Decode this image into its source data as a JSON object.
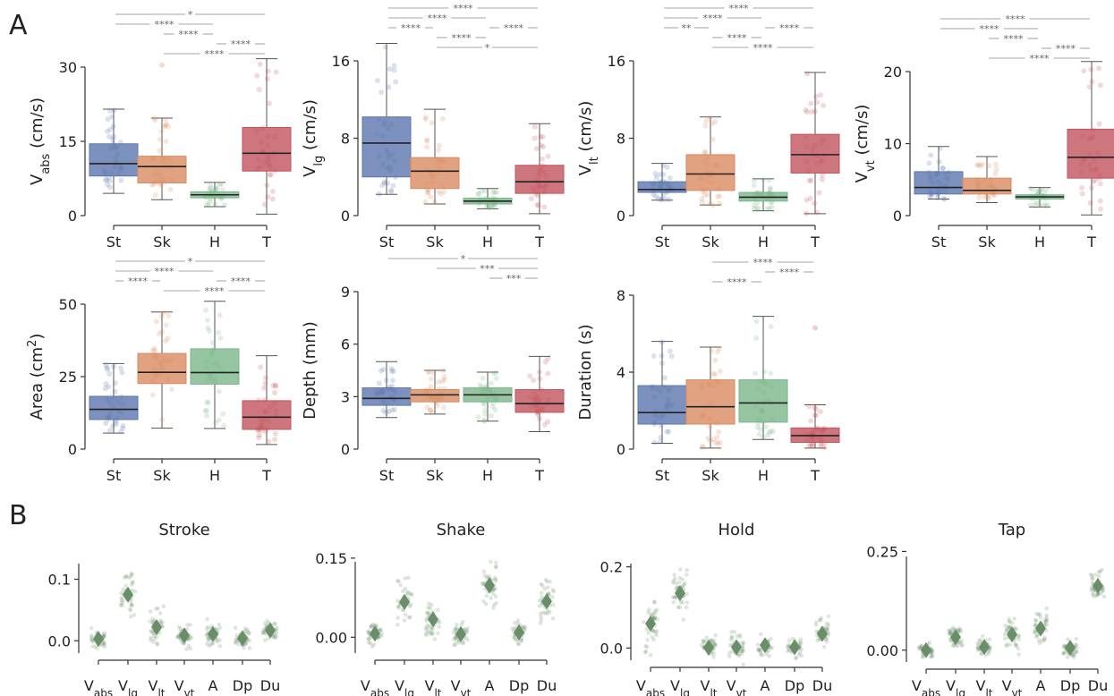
{
  "panel_letters": [
    "A",
    "B"
  ],
  "colors": {
    "St": "#5b76ae",
    "Sk": "#d98b61",
    "H": "#7ab68a",
    "T": "#c2545d",
    "marker": "#6a8f68",
    "axis": "#333333",
    "bracket": "#888888"
  },
  "chart_data": [
    {
      "type": "box",
      "panel": "A",
      "ylabel_main": "V",
      "ylabel_sub": "abs",
      "ylabel_unit": " (cm/s)",
      "categories": [
        "St",
        "Sk",
        "H",
        "T"
      ],
      "yticks": [
        0,
        15,
        30
      ],
      "ylim": [
        0,
        30
      ],
      "boxes": [
        {
          "whislo": 4.5,
          "q1": 8,
          "med": 10.5,
          "q3": 14.5,
          "whishi": 21.5
        },
        {
          "whislo": 3.2,
          "q1": 6.6,
          "med": 9.9,
          "q3": 12,
          "whishi": 19.7
        },
        {
          "whislo": 1.8,
          "q1": 3.6,
          "med": 4.2,
          "q3": 4.8,
          "whishi": 6.7
        },
        {
          "whislo": 0.3,
          "q1": 9,
          "med": 12.6,
          "q3": 17.8,
          "whishi": 31.7
        }
      ],
      "outliers": [
        [],
        [
          30.4
        ],
        [],
        []
      ],
      "significance": [
        {
          "from": 0,
          "to": 3,
          "label": "*"
        },
        {
          "from": 0,
          "to": 2,
          "label": "****"
        },
        {
          "from": 1,
          "to": 2,
          "label": "****"
        },
        {
          "from": 2,
          "to": 3,
          "label": "****"
        },
        {
          "from": 1,
          "to": 3,
          "label": "****"
        }
      ]
    },
    {
      "type": "box",
      "panel": "A",
      "ylabel_main": "V",
      "ylabel_sub": "lg",
      "ylabel_unit": " (cm/s)",
      "categories": [
        "St",
        "Sk",
        "H",
        "T"
      ],
      "yticks": [
        0,
        8,
        16
      ],
      "ylim": [
        0,
        16
      ],
      "boxes": [
        {
          "whislo": 2.2,
          "q1": 4,
          "med": 7.5,
          "q3": 10.2,
          "whishi": 17.8
        },
        {
          "whislo": 1.2,
          "q1": 2.8,
          "med": 4.6,
          "q3": 6,
          "whishi": 11
        },
        {
          "whislo": 0.7,
          "q1": 1.2,
          "med": 1.5,
          "q3": 1.8,
          "whishi": 2.8
        },
        {
          "whislo": 0.2,
          "q1": 2.3,
          "med": 3.5,
          "q3": 5.2,
          "whishi": 9.5
        }
      ],
      "outliers": [
        [],
        [],
        [],
        []
      ],
      "significance": [
        {
          "from": 0,
          "to": 3,
          "label": "****"
        },
        {
          "from": 0,
          "to": 2,
          "label": "****"
        },
        {
          "from": 0,
          "to": 1,
          "label": "****"
        },
        {
          "from": 1,
          "to": 2,
          "label": "****"
        },
        {
          "from": 2,
          "to": 3,
          "label": "****"
        },
        {
          "from": 1,
          "to": 3,
          "label": "*"
        }
      ]
    },
    {
      "type": "box",
      "panel": "A",
      "ylabel_main": "V",
      "ylabel_sub": "lt",
      "ylabel_unit": " (cm/s)",
      "categories": [
        "St",
        "Sk",
        "H",
        "T"
      ],
      "yticks": [
        0,
        8,
        16
      ],
      "ylim": [
        0,
        16
      ],
      "boxes": [
        {
          "whislo": 1.6,
          "q1": 2.4,
          "med": 2.7,
          "q3": 3.5,
          "whishi": 5.4
        },
        {
          "whislo": 1.1,
          "q1": 2.6,
          "med": 4.3,
          "q3": 6.3,
          "whishi": 10.2
        },
        {
          "whislo": 0.5,
          "q1": 1.5,
          "med": 1.9,
          "q3": 2.4,
          "whishi": 3.8
        },
        {
          "whislo": 0.2,
          "q1": 4.4,
          "med": 6.3,
          "q3": 8.4,
          "whishi": 14.8
        }
      ],
      "outliers": [
        [],
        [],
        [],
        []
      ],
      "significance": [
        {
          "from": 0,
          "to": 3,
          "label": "****"
        },
        {
          "from": 0,
          "to": 2,
          "label": "****"
        },
        {
          "from": 0,
          "to": 1,
          "label": "**"
        },
        {
          "from": 1,
          "to": 2,
          "label": "****"
        },
        {
          "from": 2,
          "to": 3,
          "label": "****"
        },
        {
          "from": 1,
          "to": 3,
          "label": "****"
        }
      ]
    },
    {
      "type": "box",
      "panel": "A",
      "ylabel_main": "V",
      "ylabel_sub": "vt",
      "ylabel_unit": " (cm/s)",
      "categories": [
        "St",
        "Sk",
        "H",
        "T"
      ],
      "yticks": [
        0,
        10,
        20
      ],
      "ylim": [
        0,
        20
      ],
      "boxes": [
        {
          "whislo": 2.3,
          "q1": 3,
          "med": 3.9,
          "q3": 6.1,
          "whishi": 9.6
        },
        {
          "whislo": 1.8,
          "q1": 3,
          "med": 3.5,
          "q3": 5.2,
          "whishi": 8.2
        },
        {
          "whislo": 1.2,
          "q1": 2.3,
          "med": 2.6,
          "q3": 2.9,
          "whishi": 3.9
        },
        {
          "whislo": 0.1,
          "q1": 5.2,
          "med": 8.1,
          "q3": 12,
          "whishi": 21.4
        }
      ],
      "outliers": [
        [],
        [],
        [],
        []
      ],
      "significance": [
        {
          "from": 0,
          "to": 3,
          "label": "****"
        },
        {
          "from": 0,
          "to": 2,
          "label": "****"
        },
        {
          "from": 1,
          "to": 2,
          "label": "****"
        },
        {
          "from": 2,
          "to": 3,
          "label": "****"
        },
        {
          "from": 1,
          "to": 3,
          "label": "****"
        }
      ]
    },
    {
      "type": "box",
      "panel": "A",
      "ylabel_main": "Area (cm",
      "ylabel_sup": "2",
      "ylabel_unit": ")",
      "categories": [
        "St",
        "Sk",
        "H",
        "T"
      ],
      "yticks": [
        0,
        25,
        50
      ],
      "ylim": [
        0,
        50
      ],
      "boxes": [
        {
          "whislo": 5.5,
          "q1": 10.2,
          "med": 13.7,
          "q3": 18.2,
          "whishi": 29.5
        },
        {
          "whislo": 7.2,
          "q1": 22.6,
          "med": 26.5,
          "q3": 33,
          "whishi": 47.3
        },
        {
          "whislo": 7.1,
          "q1": 22.4,
          "med": 26.4,
          "q3": 34.6,
          "whishi": 51
        },
        {
          "whislo": 1.6,
          "q1": 6.8,
          "med": 11,
          "q3": 16.7,
          "whishi": 32.2
        }
      ],
      "outliers": [
        [],
        [],
        [],
        []
      ],
      "significance": [
        {
          "from": 0,
          "to": 3,
          "label": "*"
        },
        {
          "from": 0,
          "to": 2,
          "label": "****"
        },
        {
          "from": 0,
          "to": 1,
          "label": "****"
        },
        {
          "from": 2,
          "to": 3,
          "label": "****"
        },
        {
          "from": 1,
          "to": 3,
          "label": "****"
        }
      ]
    },
    {
      "type": "box",
      "panel": "A",
      "ylabel_main": "Depth (mm)",
      "categories": [
        "St",
        "Sk",
        "H",
        "T"
      ],
      "yticks": [
        0,
        3,
        6,
        9
      ],
      "ylim": [
        0,
        9
      ],
      "boxes": [
        {
          "whislo": 1.8,
          "q1": 2.5,
          "med": 2.9,
          "q3": 3.5,
          "whishi": 5
        },
        {
          "whislo": 2,
          "q1": 2.7,
          "med": 3.1,
          "q3": 3.4,
          "whishi": 4.5
        },
        {
          "whislo": 1.6,
          "q1": 2.7,
          "med": 3.1,
          "q3": 3.5,
          "whishi": 4.4
        },
        {
          "whislo": 1,
          "q1": 2.1,
          "med": 2.6,
          "q3": 3.4,
          "whishi": 5.3
        }
      ],
      "outliers": [
        [],
        [],
        [],
        []
      ],
      "significance": [
        {
          "from": 0,
          "to": 3,
          "label": "*"
        },
        {
          "from": 1,
          "to": 3,
          "label": "***"
        },
        {
          "from": 2,
          "to": 3,
          "label": "***"
        }
      ]
    },
    {
      "type": "box",
      "panel": "A",
      "ylabel_main": "Duration (s)",
      "categories": [
        "St",
        "Sk",
        "H",
        "T"
      ],
      "yticks": [
        0,
        4,
        8
      ],
      "ylim": [
        0,
        8
      ],
      "boxes": [
        {
          "whislo": 0.3,
          "q1": 1.3,
          "med": 1.9,
          "q3": 3.3,
          "whishi": 5.6
        },
        {
          "whislo": 0.05,
          "q1": 1.3,
          "med": 2.2,
          "q3": 3.6,
          "whishi": 5.3
        },
        {
          "whislo": 0.5,
          "q1": 1.4,
          "med": 2.4,
          "q3": 3.6,
          "whishi": 6.9
        },
        {
          "whislo": 0.05,
          "q1": 0.35,
          "med": 0.7,
          "q3": 1.1,
          "whishi": 2.3
        }
      ],
      "outliers": [
        [],
        [],
        [],
        [
          6.3
        ]
      ],
      "significance": [
        {
          "from": 1,
          "to": 3,
          "label": "****"
        },
        {
          "from": 2,
          "to": 3,
          "label": "****"
        },
        {
          "from": 1,
          "to": 2,
          "label": "****"
        }
      ]
    },
    {
      "type": "scatter",
      "panel": "B",
      "title": "Stroke",
      "xticks": [
        {
          "main": "V",
          "sub": "abs"
        },
        {
          "main": "V",
          "sub": "lg"
        },
        {
          "main": "V",
          "sub": "lt"
        },
        {
          "main": "V",
          "sub": "vt"
        },
        {
          "main": "A",
          "sub": ""
        },
        {
          "main": "Dp",
          "sub": ""
        },
        {
          "main": "Du",
          "sub": ""
        }
      ],
      "yticks": [
        0.0,
        0.1
      ],
      "ytick_labels": [
        "0.0",
        "0.1"
      ],
      "ylim": [
        -0.02,
        0.14
      ],
      "means": [
        0.003,
        0.075,
        0.022,
        0.009,
        0.011,
        0.004,
        0.017
      ],
      "spread": [
        0.025,
        0.06,
        0.04,
        0.028,
        0.035,
        0.025,
        0.025
      ]
    },
    {
      "type": "scatter",
      "panel": "B",
      "title": "Shake",
      "xticks": [
        {
          "main": "V",
          "sub": "abs"
        },
        {
          "main": "V",
          "sub": "lg"
        },
        {
          "main": "V",
          "sub": "lt"
        },
        {
          "main": "V",
          "sub": "vt"
        },
        {
          "main": "A",
          "sub": ""
        },
        {
          "main": "Dp",
          "sub": ""
        },
        {
          "main": "Du",
          "sub": ""
        }
      ],
      "yticks": [
        0.0,
        0.15
      ],
      "ytick_labels": [
        "0.00",
        "0.15"
      ],
      "ylim": [
        -0.03,
        0.16
      ],
      "means": [
        0.007,
        0.067,
        0.034,
        0.006,
        0.098,
        0.009,
        0.068
      ],
      "spread": [
        0.03,
        0.06,
        0.05,
        0.03,
        0.06,
        0.03,
        0.05
      ]
    },
    {
      "type": "scatter",
      "panel": "B",
      "title": "Hold",
      "xticks": [
        {
          "main": "V",
          "sub": "abs"
        },
        {
          "main": "V",
          "sub": "lg"
        },
        {
          "main": "V",
          "sub": "lt"
        },
        {
          "main": "V",
          "sub": "vt"
        },
        {
          "main": "A",
          "sub": ""
        },
        {
          "main": "Dp",
          "sub": ""
        },
        {
          "main": "Du",
          "sub": ""
        }
      ],
      "yticks": [
        0.0,
        0.2
      ],
      "ytick_labels": [
        "0.0",
        "0.2"
      ],
      "ylim": [
        -0.03,
        0.23
      ],
      "means": [
        0.06,
        0.135,
        0.001,
        0.002,
        0.007,
        0.002,
        0.035
      ],
      "spread": [
        0.09,
        0.08,
        0.04,
        0.05,
        0.04,
        0.03,
        0.05
      ]
    },
    {
      "type": "scatter",
      "panel": "B",
      "title": "Tap",
      "xticks": [
        {
          "main": "V",
          "sub": "abs"
        },
        {
          "main": "V",
          "sub": "lg"
        },
        {
          "main": "V",
          "sub": "lt"
        },
        {
          "main": "V",
          "sub": "vt"
        },
        {
          "main": "A",
          "sub": ""
        },
        {
          "main": "Dp",
          "sub": ""
        },
        {
          "main": "Du",
          "sub": ""
        }
      ],
      "yticks": [
        0.0,
        0.25
      ],
      "ytick_labels": [
        "0.00",
        "0.25"
      ],
      "ylim": [
        -0.03,
        0.26
      ],
      "means": [
        0.0,
        0.033,
        0.008,
        0.04,
        0.055,
        0.006,
        0.163
      ],
      "spread": [
        0.025,
        0.04,
        0.03,
        0.06,
        0.06,
        0.03,
        0.07
      ]
    }
  ]
}
